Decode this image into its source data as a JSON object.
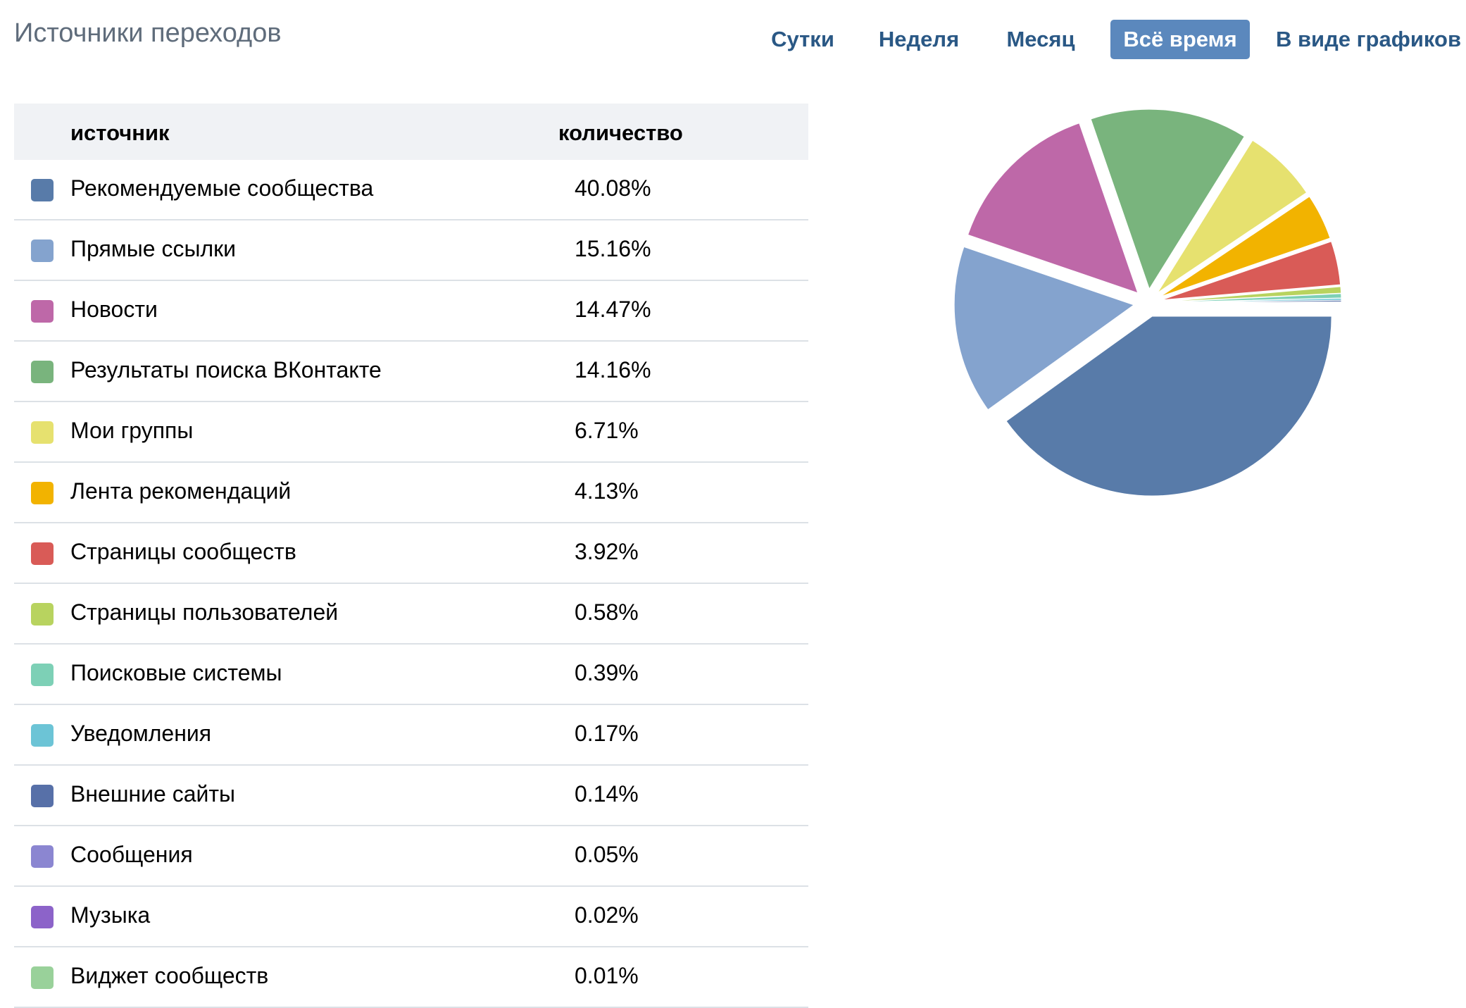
{
  "header": {
    "title": "Источники переходов",
    "tabs": [
      {
        "label": "Сутки",
        "active": false
      },
      {
        "label": "Неделя",
        "active": false
      },
      {
        "label": "Месяц",
        "active": false
      },
      {
        "label": "Всё время",
        "active": true
      },
      {
        "label": "В виде графиков",
        "active": false
      }
    ]
  },
  "table": {
    "col_source": "источник",
    "col_count": "количество",
    "rows": [
      {
        "label": "Рекомендуемые сообщества",
        "value": "40.08%",
        "color": "#587ba9"
      },
      {
        "label": "Прямые ссылки",
        "value": "15.16%",
        "color": "#84a3ce"
      },
      {
        "label": "Новости",
        "value": "14.47%",
        "color": "#be68a8"
      },
      {
        "label": "Результаты поиска ВКонтакте",
        "value": "14.16%",
        "color": "#79b47d"
      },
      {
        "label": "Мои группы",
        "value": "6.71%",
        "color": "#e6e16f"
      },
      {
        "label": "Лента рекомендаций",
        "value": "4.13%",
        "color": "#f2b300"
      },
      {
        "label": "Страницы сообществ",
        "value": "3.92%",
        "color": "#d95b57"
      },
      {
        "label": "Страницы пользователей",
        "value": "0.58%",
        "color": "#b8d35f"
      },
      {
        "label": "Поисковые системы",
        "value": "0.39%",
        "color": "#7dd0b6"
      },
      {
        "label": "Уведомления",
        "value": "0.17%",
        "color": "#6cc4d6"
      },
      {
        "label": "Внешние сайты",
        "value": "0.14%",
        "color": "#5770a8"
      },
      {
        "label": "Сообщения",
        "value": "0.05%",
        "color": "#8b86d1"
      },
      {
        "label": "Музыка",
        "value": "0.02%",
        "color": "#8c63c9"
      },
      {
        "label": "Виджет сообществ",
        "value": "0.01%",
        "color": "#99d19a"
      }
    ]
  },
  "chart_data": {
    "type": "pie",
    "categories": [
      "Рекомендуемые сообщества",
      "Прямые ссылки",
      "Новости",
      "Результаты поиска ВКонтакте",
      "Мои группы",
      "Лента рекомендаций",
      "Страницы сообществ",
      "Страницы пользователей",
      "Поисковые системы",
      "Уведомления",
      "Внешние сайты",
      "Сообщения",
      "Музыка",
      "Виджет сообществ"
    ],
    "values": [
      40.08,
      15.16,
      14.47,
      14.16,
      6.71,
      4.13,
      3.92,
      0.58,
      0.39,
      0.17,
      0.14,
      0.05,
      0.02,
      0.01
    ],
    "colors": [
      "#587ba9",
      "#84a3ce",
      "#be68a8",
      "#79b47d",
      "#e6e16f",
      "#f2b300",
      "#d95b57",
      "#b8d35f",
      "#7dd0b6",
      "#6cc4d6",
      "#5770a8",
      "#8b86d1",
      "#8c63c9",
      "#99d19a"
    ],
    "exploded": true
  }
}
